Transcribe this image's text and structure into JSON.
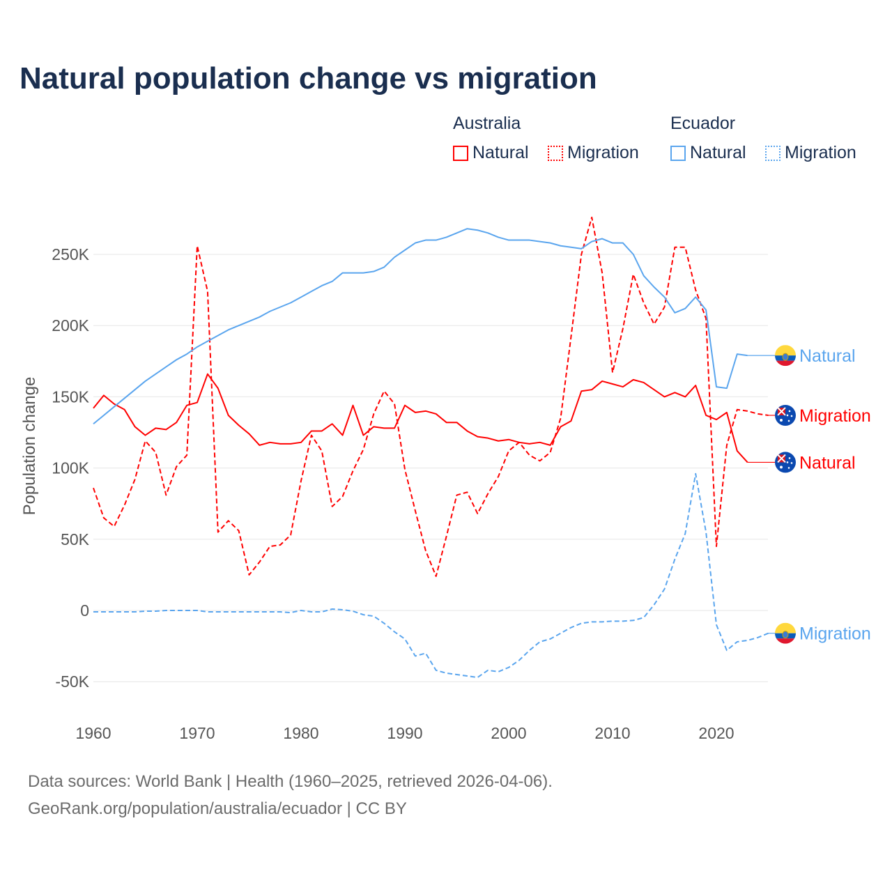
{
  "title": "Natural population change vs migration",
  "legend": {
    "groups": [
      {
        "name": "Australia",
        "items": [
          "Natural",
          "Migration"
        ]
      },
      {
        "name": "Ecuador",
        "items": [
          "Natural",
          "Migration"
        ]
      }
    ]
  },
  "footer": {
    "line1": "Data sources: World Bank | Health (1960–2025, retrieved 2026-04-06).",
    "line2": "GeoRank.org/population/australia/ecuador | CC BY"
  },
  "colors": {
    "australia": "#ff0000",
    "ecuador": "#5aa5ee"
  },
  "chart_data": {
    "type": "line",
    "title": "Natural population change vs migration",
    "xlabel": "",
    "ylabel": "Population change",
    "xlim": [
      1960,
      2025
    ],
    "ylim": [
      -60000,
      285000
    ],
    "xticks": [
      1960,
      1970,
      1980,
      1990,
      2000,
      2010,
      2020
    ],
    "yticks": [
      {
        "v": -50000,
        "label": "-50K"
      },
      {
        "v": 0,
        "label": "0"
      },
      {
        "v": 50000,
        "label": "50K"
      },
      {
        "v": 100000,
        "label": "100K"
      },
      {
        "v": 150000,
        "label": "150K"
      },
      {
        "v": 200000,
        "label": "200K"
      },
      {
        "v": 250000,
        "label": "250K"
      }
    ],
    "grid": true,
    "series": [
      {
        "name": "Australia Natural",
        "end_label": "Natural",
        "country": "australia",
        "dashed": false,
        "start": 1960,
        "values": [
          142,
          151,
          145,
          141,
          129,
          123,
          128,
          127,
          132,
          144,
          146,
          166,
          156,
          137,
          130,
          124,
          116,
          118,
          117,
          117,
          118,
          126,
          126,
          131,
          123,
          144,
          123,
          129,
          128,
          128,
          144,
          139,
          140,
          138,
          132,
          132,
          126,
          122,
          121,
          119,
          120,
          118,
          117,
          118,
          116,
          129,
          133,
          154,
          155,
          161,
          159,
          157,
          162,
          160,
          155,
          150,
          153,
          150,
          158,
          137,
          134,
          139,
          112,
          104
        ]
      },
      {
        "name": "Australia Migration",
        "end_label": "Migration",
        "country": "australia",
        "dashed": true,
        "start": 1960,
        "values": [
          86,
          65,
          59,
          74,
          92,
          119,
          111,
          81,
          101,
          109,
          256,
          224,
          55,
          63,
          56,
          25,
          34,
          45,
          46,
          53,
          91,
          123,
          112,
          73,
          80,
          98,
          113,
          138,
          154,
          145,
          99,
          70,
          42,
          24,
          52,
          81,
          83,
          68,
          82,
          94,
          112,
          118,
          109,
          105,
          111,
          135,
          192,
          250,
          276,
          237,
          167,
          198,
          236,
          216,
          201,
          213,
          255,
          255,
          225,
          205,
          45,
          116,
          141,
          140,
          138,
          137
        ]
      },
      {
        "name": "Ecuador Natural",
        "end_label": "Natural",
        "country": "ecuador",
        "dashed": false,
        "start": 1960,
        "values": [
          131,
          137,
          143,
          149,
          155,
          161,
          166,
          171,
          176,
          180,
          185,
          189,
          193,
          197,
          200,
          203,
          206,
          210,
          213,
          216,
          220,
          224,
          228,
          231,
          237,
          237,
          237,
          238,
          241,
          248,
          253,
          258,
          260,
          260,
          262,
          265,
          268,
          267,
          265,
          262,
          260,
          260,
          260,
          259,
          258,
          256,
          255,
          254,
          259,
          261,
          258,
          258,
          250,
          235,
          227,
          220,
          209,
          212,
          220,
          211,
          157,
          156,
          180,
          179
        ]
      },
      {
        "name": "Ecuador Migration",
        "end_label": "Migration",
        "country": "ecuador",
        "dashed": true,
        "start": 1960,
        "values": [
          -1,
          -1,
          -1,
          -1,
          -1,
          -0.5,
          -0.5,
          0,
          0,
          0,
          0,
          -1,
          -1,
          -1,
          -1,
          -1,
          -1,
          -1,
          -1,
          -1.5,
          0,
          -1,
          -1,
          1,
          0.5,
          -0.5,
          -3,
          -4,
          -9,
          -15,
          -20,
          -32,
          -30,
          -42,
          -44,
          -45,
          -46,
          -47,
          -42,
          -43,
          -40,
          -35,
          -28,
          -22,
          -20,
          -16,
          -12,
          -9,
          -8,
          -8,
          -7.5,
          -7.5,
          -7,
          -5,
          4,
          15,
          36,
          54,
          96,
          55,
          -10,
          -28,
          -22,
          -21,
          -19,
          -16
        ]
      }
    ]
  }
}
